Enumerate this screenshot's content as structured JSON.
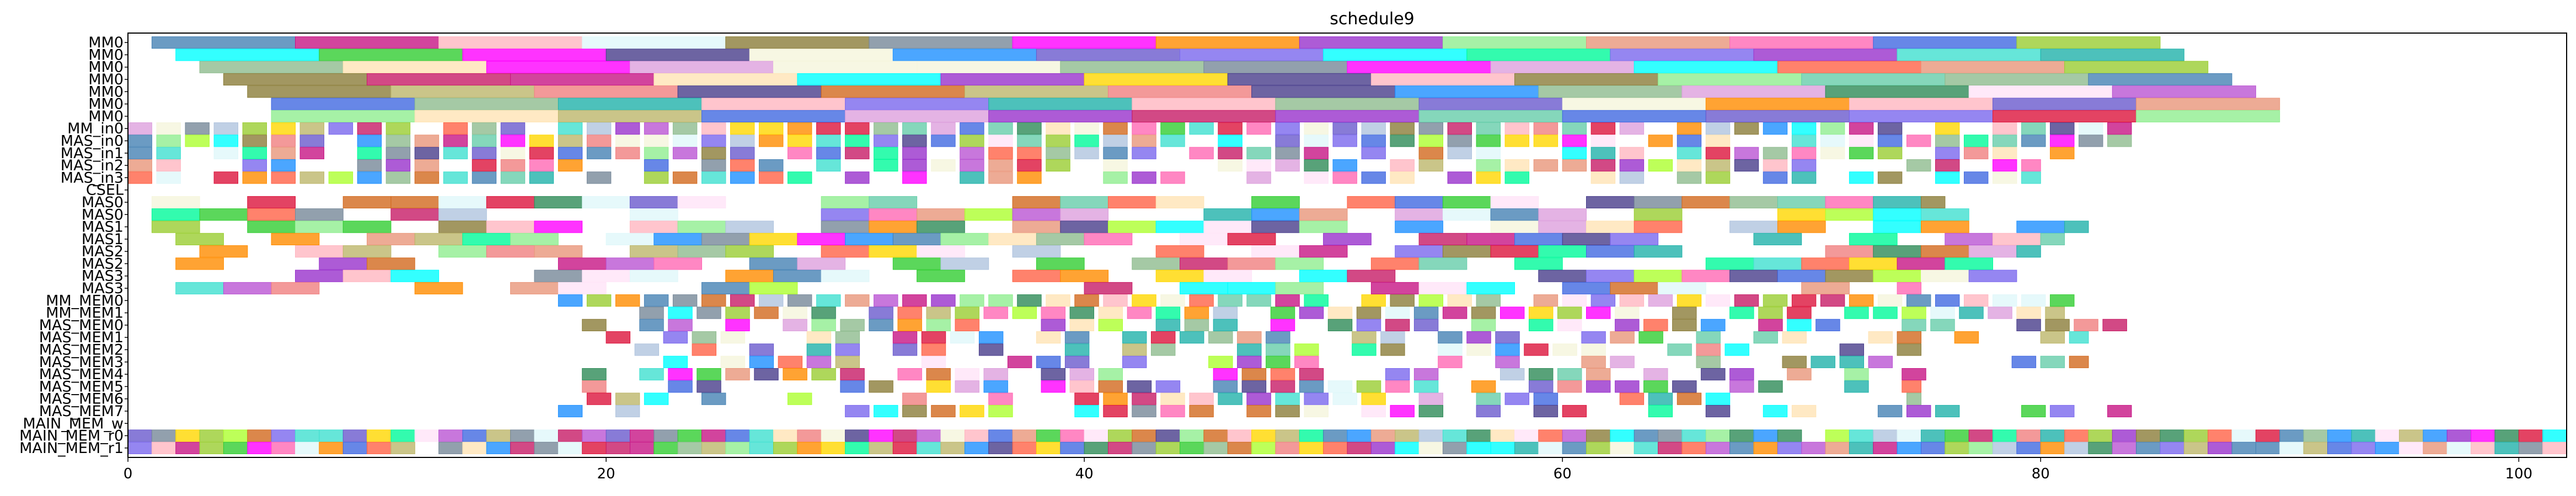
{
  "chart_data": {
    "type": "gantt",
    "title": "schedule9",
    "xlabel": "",
    "ylabel": "",
    "xlim": [
      0,
      102
    ],
    "x_ticks": [
      0,
      20,
      40,
      60,
      80,
      100
    ],
    "x_tick_labels": [
      "0",
      "20",
      "40",
      "60",
      "80",
      "100"
    ],
    "grid": false,
    "legend": "none",
    "categories": [
      "MM0",
      "MM0",
      "MM0",
      "MM0",
      "MM0",
      "MM0",
      "MM0",
      "MM_in0",
      "MAS_in0",
      "MAS_in1",
      "MAS_in2",
      "MAS_in3",
      "CSEL",
      "MAS0",
      "MAS0",
      "MAS1",
      "MAS1",
      "MAS2",
      "MAS2",
      "MAS3",
      "MAS3",
      "MM_MEM0",
      "MM_MEM1",
      "MAS_MEM0",
      "MAS_MEM1",
      "MAS_MEM2",
      "MAS_MEM3",
      "MAS_MEM4",
      "MAS_MEM5",
      "MAS_MEM6",
      "MAS_MEM7",
      "MAIN_MEM_w",
      "MAIN_MEM_r0",
      "MAIN_MEM_r1"
    ],
    "rows": [
      {
        "label": "MM0",
        "start": 1,
        "end": 85,
        "dur": 6,
        "step": 6,
        "density": 1
      },
      {
        "label": "MM0",
        "start": 2,
        "end": 87,
        "dur": 6,
        "step": 6,
        "density": 1
      },
      {
        "label": "MM0",
        "start": 3,
        "end": 88,
        "dur": 6,
        "step": 6,
        "density": 1
      },
      {
        "label": "MM0",
        "start": 4,
        "end": 89,
        "dur": 6,
        "step": 6,
        "density": 1
      },
      {
        "label": "MM0",
        "start": 5,
        "end": 90,
        "dur": 6,
        "step": 6,
        "density": 1
      },
      {
        "label": "MM0",
        "start": 6,
        "end": 91,
        "dur": 6,
        "step": 6,
        "density": 1
      },
      {
        "label": "MM0",
        "start": 6,
        "end": 91,
        "dur": 6,
        "step": 6,
        "density": 1
      },
      {
        "label": "MM_in0",
        "start": 0,
        "end": 84,
        "dur": 1,
        "step": 1.2,
        "density": 0.95
      },
      {
        "label": "MAS_in0",
        "start": 0,
        "end": 84,
        "dur": 1,
        "step": 1.2,
        "density": 0.92
      },
      {
        "label": "MAS_in1",
        "start": 0,
        "end": 82,
        "dur": 1,
        "step": 1.2,
        "density": 0.82
      },
      {
        "label": "MAS_in2",
        "start": 0,
        "end": 80,
        "dur": 1,
        "step": 1.2,
        "density": 0.72
      },
      {
        "label": "MAS_in3",
        "start": 0,
        "end": 80,
        "dur": 1,
        "step": 1.2,
        "density": 0.66
      },
      {
        "label": "CSEL",
        "start": 0,
        "end": 0,
        "dur": 1,
        "step": 1,
        "density": 0
      },
      {
        "label": "MAS0",
        "start": 1,
        "end": 76,
        "dur": 2,
        "step": 2,
        "density": 0.78
      },
      {
        "label": "MAS0",
        "start": 1,
        "end": 77,
        "dur": 2,
        "step": 2,
        "density": 0.72
      },
      {
        "label": "MAS1",
        "start": 1,
        "end": 82,
        "dur": 2,
        "step": 2,
        "density": 0.72
      },
      {
        "label": "MAS1",
        "start": 2,
        "end": 81,
        "dur": 2,
        "step": 2,
        "density": 0.68
      },
      {
        "label": "MAS2",
        "start": 1,
        "end": 80,
        "dur": 2,
        "step": 2,
        "density": 0.7
      },
      {
        "label": "MAS2",
        "start": 2,
        "end": 78,
        "dur": 2,
        "step": 2,
        "density": 0.64
      },
      {
        "label": "MAS3",
        "start": 1,
        "end": 81,
        "dur": 2,
        "step": 2,
        "density": 0.62
      },
      {
        "label": "MAS3",
        "start": 2,
        "end": 75,
        "dur": 2,
        "step": 2,
        "density": 0.58
      },
      {
        "label": "MM_MEM0",
        "start": 18,
        "end": 82,
        "dur": 1,
        "step": 1.2,
        "density": 0.9
      },
      {
        "label": "MM_MEM1",
        "start": 19,
        "end": 81,
        "dur": 1,
        "step": 1.2,
        "density": 0.82
      },
      {
        "label": "MAS_MEM0",
        "start": 19,
        "end": 84,
        "dur": 1,
        "step": 1.2,
        "density": 0.75
      },
      {
        "label": "MAS_MEM1",
        "start": 20,
        "end": 82,
        "dur": 1,
        "step": 1.2,
        "density": 0.66
      },
      {
        "label": "MAS_MEM2",
        "start": 20,
        "end": 80,
        "dur": 1,
        "step": 1.2,
        "density": 0.58
      },
      {
        "label": "MAS_MEM3",
        "start": 20,
        "end": 82,
        "dur": 1,
        "step": 1.2,
        "density": 0.58
      },
      {
        "label": "MAS_MEM4",
        "start": 19,
        "end": 77,
        "dur": 1,
        "step": 1.2,
        "density": 0.6
      },
      {
        "label": "MAS_MEM5",
        "start": 19,
        "end": 75,
        "dur": 1,
        "step": 1.2,
        "density": 0.58
      },
      {
        "label": "MAS_MEM6",
        "start": 18,
        "end": 75,
        "dur": 1,
        "step": 1.2,
        "density": 0.58
      },
      {
        "label": "MAS_MEM7",
        "start": 18,
        "end": 84,
        "dur": 1,
        "step": 1.2,
        "density": 0.6
      },
      {
        "label": "MAIN_MEM_w",
        "start": 0,
        "end": 0,
        "dur": 1,
        "step": 1,
        "density": 0
      },
      {
        "label": "MAIN_MEM_r0",
        "start": 0,
        "end": 102,
        "dur": 1,
        "step": 1,
        "density": 0.98
      },
      {
        "label": "MAIN_MEM_r1",
        "start": 0,
        "end": 102,
        "dur": 1,
        "step": 1,
        "density": 0.98
      }
    ],
    "palette": [
      "#7b68ee",
      "#ffe4f7",
      "#c71585",
      "#bdb76b",
      "#e0f7fa",
      "#8b7d3a",
      "#66cdaa",
      "#ff69b4",
      "#e9967a",
      "#c71b66",
      "#4169e1",
      "#8fbc8f",
      "#4682b4",
      "#40e0d0",
      "#ba55d3",
      "#9932cc",
      "#32cd32",
      "#ffe4b5",
      "#ff6347",
      "#6a5acd",
      "#90ee90",
      "#ffd700",
      "#20b2aa",
      "#dda0dd",
      "#00ffff",
      "#ff00ff",
      "#adff2f",
      "#f08080",
      "#778899",
      "#2e8b57",
      "#ff8c00",
      "#1e90ff",
      "#ffb6c1",
      "#9acd32",
      "#d2691e",
      "#b0c4de",
      "#483d8b",
      "#f5f5dc",
      "#00fa9a",
      "#dc143c"
    ]
  }
}
